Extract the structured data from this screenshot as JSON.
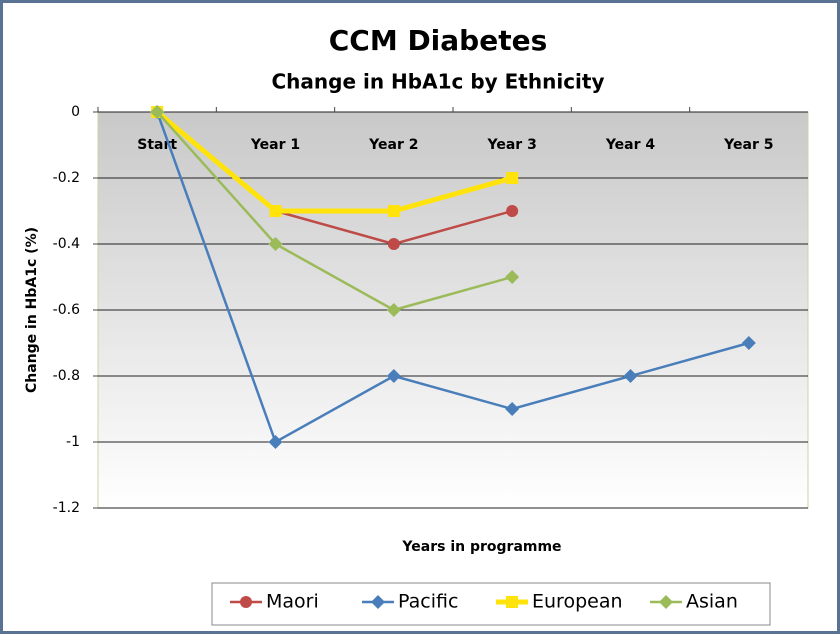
{
  "chart_data": {
    "type": "line",
    "title": "CCM Diabetes",
    "subtitle": "Change in HbA1c by Ethnicity",
    "x_label": "Years in programme",
    "y_label": "Change in HbA1c (%)",
    "categories": [
      "Start",
      "Year 1",
      "Year 2",
      "Year 3",
      "Year 4",
      "Year 5"
    ],
    "series": [
      {
        "name": "Maori",
        "color": "#be4b48",
        "marker": "circle",
        "values": [
          0,
          -0.3,
          -0.4,
          -0.3,
          null,
          null
        ]
      },
      {
        "name": "Pacific",
        "color": "#4a7ebb",
        "marker": "diamond",
        "values": [
          0,
          -1,
          -0.8,
          -0.9,
          -0.8,
          -0.7
        ]
      },
      {
        "name": "European",
        "color": "#ffe30a",
        "marker": "square",
        "values": [
          0,
          -0.3,
          -0.3,
          -0.2,
          null,
          null
        ]
      },
      {
        "name": "Asian",
        "color": "#9bbb59",
        "marker": "diamond",
        "values": [
          0,
          -0.4,
          -0.6,
          -0.5,
          null,
          null
        ]
      }
    ],
    "ylim": [
      -1.2,
      0
    ],
    "yticks": [
      0,
      -0.2,
      -0.4,
      -0.6,
      -0.8,
      -1,
      -1.2
    ],
    "grid": true,
    "legend": "bottom"
  }
}
